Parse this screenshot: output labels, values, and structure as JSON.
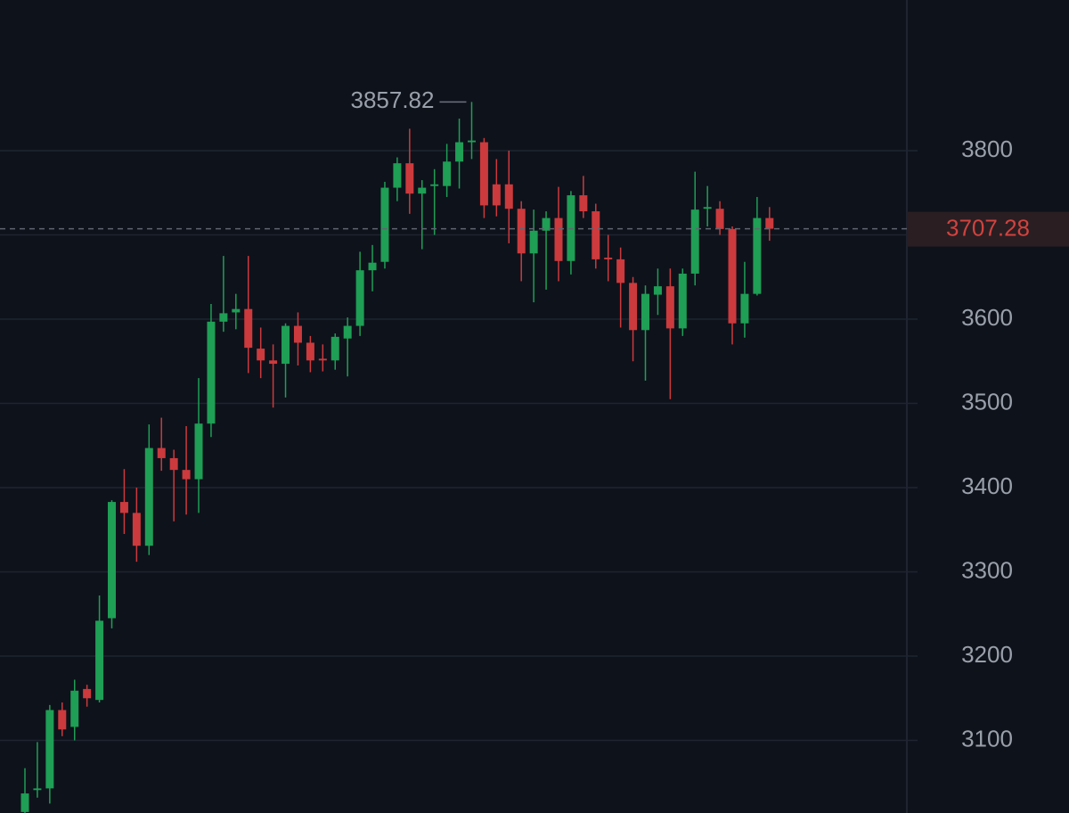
{
  "chart_data": {
    "type": "candlestick",
    "up_color": "#1f9e55",
    "down_color": "#cc3a3d",
    "grid": true,
    "ylim": [
      3013.8,
      3978.8
    ],
    "yticks": [
      3100,
      3200,
      3300,
      3400,
      3500,
      3600,
      3700,
      3800
    ],
    "open": [
      3015,
      3041,
      3043,
      3136,
      3116,
      3161,
      3148,
      3245,
      3383,
      3370,
      3331,
      3447,
      3435,
      3421,
      3410,
      3476,
      3597,
      3608,
      3612,
      3565,
      3551,
      3547,
      3592,
      3572,
      3553,
      3551,
      3577,
      3592,
      3658,
      3668,
      3756,
      3785,
      3749,
      3758,
      3758,
      3787,
      3810,
      3810,
      3760,
      3760,
      3731,
      3678,
      3705,
      3720,
      3669,
      3747,
      3728,
      3673,
      3671,
      3643,
      3587,
      3629,
      3639,
      3589,
      3654,
      3731,
      3731,
      3707,
      3595,
      3630,
      3720
    ],
    "high": [
      3067,
      3098,
      3142,
      3145,
      3172,
      3166,
      3272,
      3385,
      3422,
      3400,
      3475,
      3483,
      3445,
      3473,
      3530,
      3618,
      3675,
      3630,
      3675,
      3590,
      3570,
      3595,
      3608,
      3580,
      3570,
      3583,
      3602,
      3680,
      3688,
      3763,
      3792,
      3826,
      3765,
      3778,
      3808,
      3838,
      3857.82,
      3815,
      3790,
      3800,
      3740,
      3730,
      3728,
      3757,
      3752,
      3770,
      3737,
      3700,
      3685,
      3650,
      3640,
      3660,
      3660,
      3660,
      3775,
      3758,
      3740,
      3710,
      3668,
      3745,
      3733
    ],
    "low": [
      3000,
      3032,
      3025,
      3105,
      3100,
      3140,
      3145,
      3233,
      3345,
      3312,
      3320,
      3420,
      3360,
      3368,
      3370,
      3460,
      3585,
      3588,
      3536,
      3530,
      3495,
      3507,
      3545,
      3537,
      3538,
      3540,
      3532,
      3580,
      3633,
      3660,
      3740,
      3725,
      3683,
      3700,
      3745,
      3755,
      3790,
      3720,
      3722,
      3690,
      3645,
      3620,
      3635,
      3645,
      3653,
      3720,
      3660,
      3645,
      3590,
      3550,
      3527,
      3605,
      3505,
      3580,
      3640,
      3710,
      3700,
      3570,
      3578,
      3628,
      3693
    ],
    "close": [
      3037,
      3043,
      3136,
      3113,
      3159,
      3150,
      3242,
      3383,
      3370,
      3331,
      3447,
      3435,
      3421,
      3410,
      3476,
      3597,
      3607,
      3612,
      3566,
      3551,
      3547,
      3592,
      3572,
      3551,
      3551,
      3579,
      3592,
      3658,
      3667,
      3756,
      3785,
      3749,
      3756,
      3760,
      3787,
      3810,
      3812,
      3735,
      3735,
      3731,
      3678,
      3705,
      3720,
      3669,
      3747,
      3728,
      3671,
      3671,
      3643,
      3587,
      3630,
      3639,
      3589,
      3654,
      3730,
      3733,
      3707,
      3595,
      3630,
      3720,
      3707.28
    ]
  }
}
